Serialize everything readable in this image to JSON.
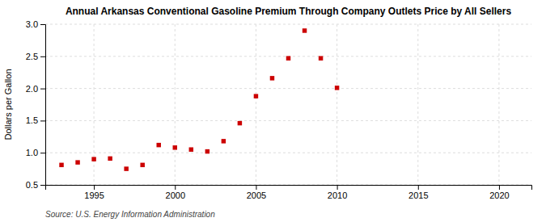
{
  "chart_data": {
    "type": "scatter",
    "title": "Annual Arkansas Conventional Gasoline Premium Through Company Outlets Price by All Sellers",
    "ylabel": "Dollars per Gallon",
    "source": "Source: U.S. Energy Information Administration",
    "x": [
      1993,
      1994,
      1995,
      1996,
      1997,
      1998,
      1999,
      2000,
      2001,
      2002,
      2003,
      2004,
      2005,
      2006,
      2007,
      2008,
      2009,
      2010
    ],
    "values": [
      0.81,
      0.85,
      0.9,
      0.91,
      0.75,
      0.81,
      1.12,
      1.08,
      1.05,
      1.02,
      1.18,
      1.46,
      1.88,
      2.16,
      2.47,
      2.9,
      2.47,
      2.01
    ],
    "color": "#cc0000",
    "marker": "square",
    "xlim": [
      1992,
      2022
    ],
    "ylim": [
      0.5,
      3.0
    ],
    "xticks": [
      1995,
      2000,
      2005,
      2010,
      2015,
      2020
    ],
    "yticks": [
      0.5,
      {
        "value": 1.0,
        "label": "1.0"
      },
      1.5,
      {
        "value": 2.0,
        "label": "2.0"
      },
      2.5,
      {
        "value": 3.0,
        "label": "3.0"
      }
    ],
    "grid": true
  }
}
